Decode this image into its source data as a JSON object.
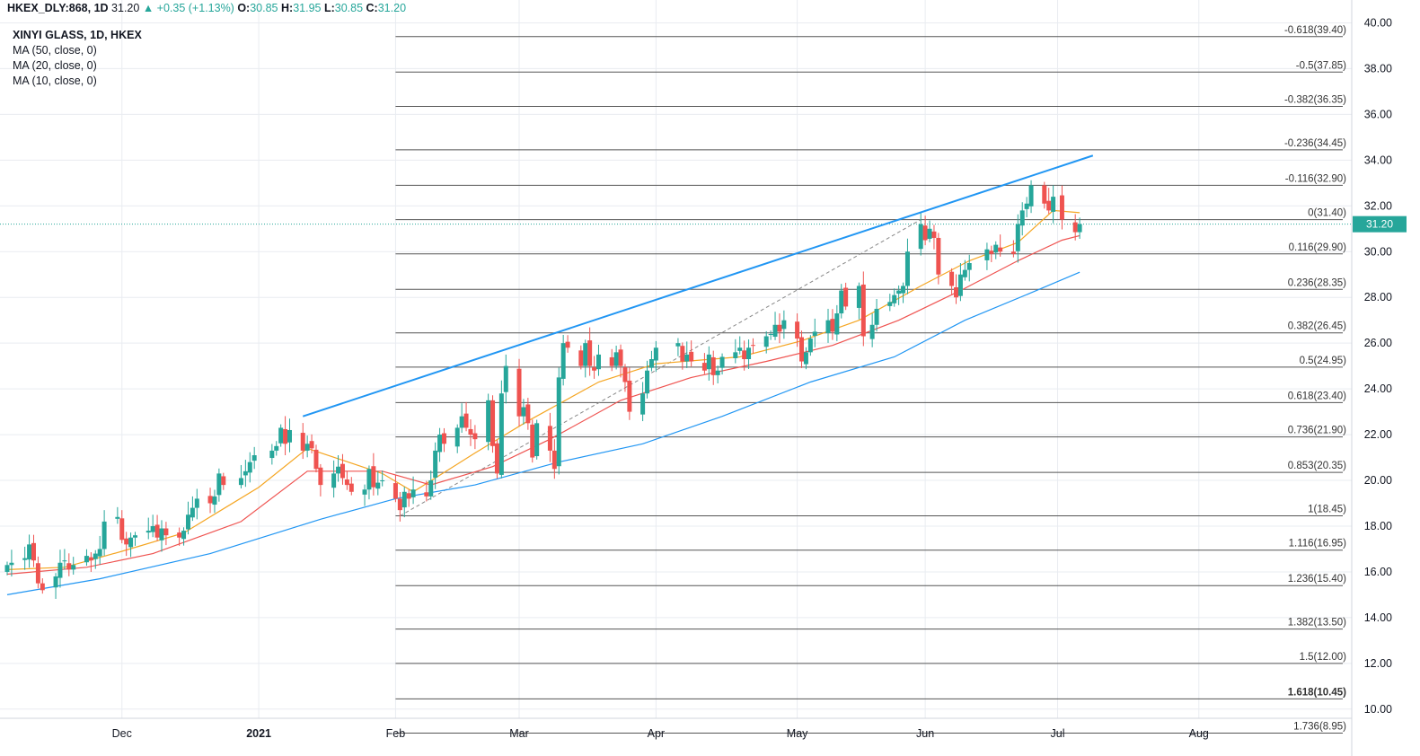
{
  "header": {
    "symbol": "HKEX_DLY:868, 1D",
    "last": "31.20",
    "change_arrow": "▲",
    "change": "+0.35 (+1.13%)",
    "o_label": "O:",
    "o_val": "30.85",
    "h_label": "H:",
    "h_val": "31.95",
    "l_label": "L:",
    "l_val": "30.85",
    "c_label": "C:",
    "c_val": "31.20"
  },
  "legend": {
    "symbol": "XINYI GLASS, 1D, HKEX",
    "ma50": "MA (50, close, 0)",
    "ma20": "MA (20, close, 0)",
    "ma10": "MA (10, close, 0)"
  },
  "colors": {
    "up": "#26a69a",
    "down": "#ef5350",
    "ma50": "#2196f3",
    "ma20": "#ef5350",
    "ma10": "#f5a623",
    "trend": "#2196f3",
    "fib": "#555555",
    "grid": "#e9ecf1"
  },
  "chart_data": {
    "type": "candlestick",
    "y_range": [
      9.6,
      41.0
    ],
    "y_ticks": [
      10,
      12,
      14,
      16,
      18,
      20,
      22,
      24,
      26,
      28,
      30,
      32,
      34,
      36,
      38,
      40
    ],
    "y_tick_labels": [
      "10.00",
      "12.00",
      "14.00",
      "16.00",
      "18.00",
      "20.00",
      "22.00",
      "24.00",
      "26.00",
      "28.00",
      "30.00",
      "32.00",
      "34.00",
      "36.00",
      "38.00",
      "40.00"
    ],
    "x_labels": [
      {
        "label": "Dec",
        "date": "2020-12-01"
      },
      {
        "label": "2021",
        "date": "2021-01-01",
        "bold": true
      },
      {
        "label": "Feb",
        "date": "2021-02-01"
      },
      {
        "label": "Mar",
        "date": "2021-03-01"
      },
      {
        "label": "Apr",
        "date": "2021-04-01"
      },
      {
        "label": "May",
        "date": "2021-05-03"
      },
      {
        "label": "Jun",
        "date": "2021-06-01"
      },
      {
        "label": "Jul",
        "date": "2021-07-01"
      },
      {
        "label": "Aug",
        "date": "2021-08-02"
      }
    ],
    "current_price": 31.2,
    "candle_path": [
      [
        "2020-11-05",
        16.3
      ],
      [
        "2020-11-06",
        16.4
      ],
      [
        "2020-11-09",
        16.6
      ],
      [
        "2020-11-10",
        17.2
      ],
      [
        "2020-11-11",
        16.5
      ],
      [
        "2020-11-12",
        15.5
      ],
      [
        "2020-11-13",
        15.2
      ],
      [
        "2020-11-16",
        15.8
      ],
      [
        "2020-11-17",
        16.4
      ],
      [
        "2020-11-18",
        16.5
      ],
      [
        "2020-11-19",
        16.1
      ],
      [
        "2020-11-20",
        16.3
      ],
      [
        "2020-11-23",
        16.7
      ],
      [
        "2020-11-24",
        16.5
      ],
      [
        "2020-11-25",
        16.8
      ],
      [
        "2020-11-26",
        17.0
      ],
      [
        "2020-11-27",
        18.2
      ],
      [
        "2020-11-30",
        18.4
      ],
      [
        "2020-12-01",
        17.4
      ],
      [
        "2020-12-02",
        17.2
      ],
      [
        "2020-12-03",
        17.5
      ],
      [
        "2020-12-04",
        17.6
      ],
      [
        "2020-12-07",
        17.8
      ],
      [
        "2020-12-08",
        18.0
      ],
      [
        "2020-12-09",
        17.5
      ],
      [
        "2020-12-10",
        17.9
      ],
      [
        "2020-12-11",
        17.6
      ],
      [
        "2020-12-14",
        17.5
      ],
      [
        "2020-12-15",
        17.8
      ],
      [
        "2020-12-16",
        18.5
      ],
      [
        "2020-12-17",
        18.8
      ],
      [
        "2020-12-18",
        19.2
      ],
      [
        "2020-12-21",
        19.0
      ],
      [
        "2020-12-22",
        19.3
      ],
      [
        "2020-12-23",
        20.3
      ],
      [
        "2020-12-24",
        19.8
      ],
      [
        "2020-12-28",
        20.1
      ],
      [
        "2020-12-29",
        20.4
      ],
      [
        "2020-12-30",
        20.8
      ],
      [
        "2020-12-31",
        21.1
      ],
      [
        "2021-01-04",
        21.3
      ],
      [
        "2021-01-05",
        21.5
      ],
      [
        "2021-01-06",
        22.3
      ],
      [
        "2021-01-07",
        21.6
      ],
      [
        "2021-01-08",
        22.2
      ],
      [
        "2021-01-11",
        21.3
      ],
      [
        "2021-01-12",
        21.6
      ],
      [
        "2021-01-13",
        21.4
      ],
      [
        "2021-01-14",
        20.5
      ],
      [
        "2021-01-15",
        19.8
      ],
      [
        "2021-01-18",
        20.3
      ],
      [
        "2021-01-19",
        20.6
      ],
      [
        "2021-01-20",
        20.1
      ],
      [
        "2021-01-21",
        19.8
      ],
      [
        "2021-01-22",
        19.5
      ],
      [
        "2021-01-25",
        19.6
      ],
      [
        "2021-01-26",
        20.5
      ],
      [
        "2021-01-27",
        19.7
      ],
      [
        "2021-01-28",
        19.9
      ],
      [
        "2021-01-29",
        20.0
      ],
      [
        "2021-02-01",
        19.2
      ],
      [
        "2021-02-02",
        18.7
      ],
      [
        "2021-02-03",
        19.5
      ],
      [
        "2021-02-04",
        19.2
      ],
      [
        "2021-02-05",
        19.6
      ],
      [
        "2021-02-08",
        19.3
      ],
      [
        "2021-02-09",
        20.0
      ],
      [
        "2021-02-10",
        21.3
      ],
      [
        "2021-02-11",
        22.0
      ],
      [
        "2021-02-12",
        21.6
      ],
      [
        "2021-02-15",
        22.3
      ],
      [
        "2021-02-16",
        22.8
      ],
      [
        "2021-02-17",
        22.3
      ],
      [
        "2021-02-18",
        22.0
      ],
      [
        "2021-02-19",
        21.8
      ],
      [
        "2021-02-22",
        23.5
      ],
      [
        "2021-02-23",
        21.5
      ],
      [
        "2021-02-24",
        20.3
      ],
      [
        "2021-02-25",
        23.8
      ],
      [
        "2021-02-26",
        25.0
      ],
      [
        "2021-03-01",
        22.8
      ],
      [
        "2021-03-02",
        23.2
      ],
      [
        "2021-03-03",
        22.5
      ],
      [
        "2021-03-04",
        21.0
      ],
      [
        "2021-03-05",
        22.5
      ],
      [
        "2021-03-08",
        21.3
      ],
      [
        "2021-03-09",
        20.5
      ],
      [
        "2021-03-10",
        24.5
      ],
      [
        "2021-03-11",
        26.0
      ],
      [
        "2021-03-12",
        25.8
      ],
      [
        "2021-03-15",
        25.0
      ],
      [
        "2021-03-16",
        26.0
      ],
      [
        "2021-03-17",
        25.0
      ],
      [
        "2021-03-18",
        24.8
      ],
      [
        "2021-03-19",
        25.5
      ],
      [
        "2021-03-22",
        25.0
      ],
      [
        "2021-03-23",
        25.6
      ],
      [
        "2021-03-24",
        25.0
      ],
      [
        "2021-03-25",
        24.3
      ],
      [
        "2021-03-26",
        23.0
      ],
      [
        "2021-03-29",
        23.8
      ],
      [
        "2021-03-30",
        24.8
      ],
      [
        "2021-03-31",
        25.3
      ],
      [
        "2021-04-01",
        25.8
      ],
      [
        "2021-04-06",
        26.0
      ],
      [
        "2021-04-07",
        25.2
      ],
      [
        "2021-04-08",
        25.5
      ],
      [
        "2021-04-09",
        25.2
      ],
      [
        "2021-04-12",
        24.8
      ],
      [
        "2021-04-13",
        25.5
      ],
      [
        "2021-04-14",
        24.6
      ],
      [
        "2021-04-15",
        24.8
      ],
      [
        "2021-04-16",
        25.4
      ],
      [
        "2021-04-19",
        25.6
      ],
      [
        "2021-04-20",
        25.8
      ],
      [
        "2021-04-21",
        25.3
      ],
      [
        "2021-04-22",
        25.8
      ],
      [
        "2021-04-23",
        25.9
      ],
      [
        "2021-04-26",
        26.3
      ],
      [
        "2021-04-27",
        26.4
      ],
      [
        "2021-04-28",
        26.8
      ],
      [
        "2021-04-29",
        26.5
      ],
      [
        "2021-04-30",
        27.0
      ],
      [
        "2021-05-03",
        26.2
      ],
      [
        "2021-05-04",
        25.2
      ],
      [
        "2021-05-05",
        25.6
      ],
      [
        "2021-05-06",
        26.2
      ],
      [
        "2021-05-07",
        26.5
      ],
      [
        "2021-05-10",
        27.0
      ],
      [
        "2021-05-11",
        26.5
      ],
      [
        "2021-05-12",
        27.3
      ],
      [
        "2021-05-13",
        28.3
      ],
      [
        "2021-05-14",
        27.6
      ],
      [
        "2021-05-17",
        28.5
      ],
      [
        "2021-05-18",
        26.3
      ],
      [
        "2021-05-20",
        26.8
      ],
      [
        "2021-05-21",
        27.5
      ],
      [
        "2021-05-24",
        27.8
      ],
      [
        "2021-05-25",
        28.1
      ],
      [
        "2021-05-26",
        28.3
      ],
      [
        "2021-05-27",
        28.5
      ],
      [
        "2021-05-28",
        30.0
      ],
      [
        "2021-05-31",
        31.2
      ],
      [
        "2021-06-01",
        30.5
      ],
      [
        "2021-06-02",
        31.0
      ],
      [
        "2021-06-03",
        30.6
      ],
      [
        "2021-06-04",
        29.0
      ],
      [
        "2021-06-07",
        28.5
      ],
      [
        "2021-06-08",
        28.0
      ],
      [
        "2021-06-09",
        29.0
      ],
      [
        "2021-06-10",
        29.2
      ],
      [
        "2021-06-11",
        29.5
      ],
      [
        "2021-06-15",
        30.1
      ],
      [
        "2021-06-16",
        29.9
      ],
      [
        "2021-06-17",
        30.3
      ],
      [
        "2021-06-18",
        30.0
      ],
      [
        "2021-06-21",
        29.9
      ],
      [
        "2021-06-22",
        31.2
      ],
      [
        "2021-06-23",
        31.8
      ],
      [
        "2021-06-24",
        32.1
      ],
      [
        "2021-06-25",
        32.9
      ],
      [
        "2021-06-28",
        32.1
      ],
      [
        "2021-06-29",
        31.8
      ],
      [
        "2021-06-30",
        32.4
      ],
      [
        "2021-07-02",
        31.4
      ],
      [
        "2021-07-05",
        30.85
      ],
      [
        "2021-07-06",
        31.2
      ]
    ],
    "moving_averages": [
      {
        "name": "MA (10, close, 0)",
        "color": "#f5a623",
        "points": [
          [
            "2020-11-05",
            16.1
          ],
          [
            "2020-11-18",
            16.2
          ],
          [
            "2020-12-01",
            16.9
          ],
          [
            "2020-12-15",
            17.7
          ],
          [
            "2021-01-01",
            19.7
          ],
          [
            "2021-01-12",
            21.4
          ],
          [
            "2021-01-29",
            20.3
          ],
          [
            "2021-02-05",
            19.5
          ],
          [
            "2021-02-19",
            21.2
          ],
          [
            "2021-03-03",
            22.6
          ],
          [
            "2021-03-19",
            24.3
          ],
          [
            "2021-04-01",
            25.1
          ],
          [
            "2021-04-20",
            25.4
          ],
          [
            "2021-05-04",
            26.1
          ],
          [
            "2021-05-17",
            27.0
          ],
          [
            "2021-05-31",
            28.5
          ],
          [
            "2021-06-11",
            29.6
          ],
          [
            "2021-06-22",
            30.4
          ],
          [
            "2021-06-30",
            31.8
          ],
          [
            "2021-07-06",
            31.7
          ]
        ]
      },
      {
        "name": "MA (20, close, 0)",
        "color": "#ef5350",
        "points": [
          [
            "2020-11-05",
            15.9
          ],
          [
            "2020-11-23",
            16.2
          ],
          [
            "2020-12-08",
            16.8
          ],
          [
            "2020-12-28",
            18.2
          ],
          [
            "2021-01-12",
            20.4
          ],
          [
            "2021-01-29",
            20.4
          ],
          [
            "2021-02-09",
            19.8
          ],
          [
            "2021-02-23",
            20.6
          ],
          [
            "2021-03-08",
            21.8
          ],
          [
            "2021-03-24",
            23.5
          ],
          [
            "2021-04-09",
            24.5
          ],
          [
            "2021-04-26",
            25.2
          ],
          [
            "2021-05-11",
            25.9
          ],
          [
            "2021-05-26",
            27.0
          ],
          [
            "2021-06-09",
            28.3
          ],
          [
            "2021-06-22",
            29.6
          ],
          [
            "2021-07-02",
            30.5
          ],
          [
            "2021-07-06",
            30.7
          ]
        ]
      },
      {
        "name": "MA (50, close, 0)",
        "color": "#2196f3",
        "points": [
          [
            "2020-11-05",
            15.0
          ],
          [
            "2020-11-26",
            15.7
          ],
          [
            "2020-12-21",
            16.8
          ],
          [
            "2021-01-15",
            18.3
          ],
          [
            "2021-02-01",
            19.2
          ],
          [
            "2021-02-19",
            19.8
          ],
          [
            "2021-03-10",
            20.8
          ],
          [
            "2021-03-29",
            21.6
          ],
          [
            "2021-04-16",
            22.8
          ],
          [
            "2021-05-06",
            24.3
          ],
          [
            "2021-05-25",
            25.4
          ],
          [
            "2021-06-10",
            27.0
          ],
          [
            "2021-06-25",
            28.2
          ],
          [
            "2021-07-06",
            29.1
          ]
        ]
      }
    ],
    "trend_line": {
      "from": [
        "2021-01-11",
        22.8
      ],
      "to": [
        "2021-07-09",
        34.2
      ]
    },
    "fib_diagonal": {
      "from": [
        "2021-02-02",
        18.45
      ],
      "to": [
        "2021-05-31",
        31.4
      ]
    },
    "fib_start": "2021-02-01",
    "fib_levels": [
      {
        "label": "-0.618(39.40)",
        "price": 39.4
      },
      {
        "label": "-0.5(37.85)",
        "price": 37.85
      },
      {
        "label": "-0.382(36.35)",
        "price": 36.35
      },
      {
        "label": "-0.236(34.45)",
        "price": 34.45
      },
      {
        "label": "-0.116(32.90)",
        "price": 32.9
      },
      {
        "label": "0(31.40)",
        "price": 31.4
      },
      {
        "label": "0.116(29.90)",
        "price": 29.9
      },
      {
        "label": "0.236(28.35)",
        "price": 28.35
      },
      {
        "label": "0.382(26.45)",
        "price": 26.45
      },
      {
        "label": "0.5(24.95)",
        "price": 24.95
      },
      {
        "label": "0.618(23.40)",
        "price": 23.4
      },
      {
        "label": "0.736(21.90)",
        "price": 21.9
      },
      {
        "label": "0.853(20.35)",
        "price": 20.35
      },
      {
        "label": "1(18.45)",
        "price": 18.45
      },
      {
        "label": "1.116(16.95)",
        "price": 16.95
      },
      {
        "label": "1.236(15.40)",
        "price": 15.4
      },
      {
        "label": "1.382(13.50)",
        "price": 13.5
      },
      {
        "label": "1.5(12.00)",
        "price": 12.0
      },
      {
        "label": "1.618(10.45)",
        "price": 10.45,
        "bold": true
      },
      {
        "label": "1.736(8.95)",
        "price": 8.95
      }
    ]
  }
}
